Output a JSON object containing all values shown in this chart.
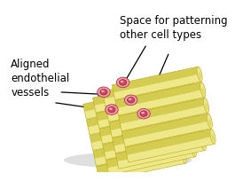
{
  "bg_color": "#ffffff",
  "fiber_light": "#eee88a",
  "fiber_mid": "#d4cc50",
  "fiber_dark": "#b8a818",
  "fiber_shade": "#a09010",
  "vessel_outer": "#f0a0a8",
  "vessel_inner": "#d04858",
  "vessel_hi": "#f8c8cc",
  "shadow_color": "#b0b0b0",
  "label1": "Aligned\nendothelial\nvessels",
  "label2": "Space for patterning\nother cell types",
  "fontsize": 8.5,
  "figsize": [
    2.74,
    2.05
  ],
  "dpi": 100
}
